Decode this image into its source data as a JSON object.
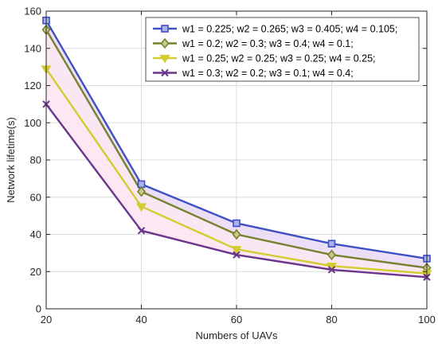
{
  "chart_data": {
    "type": "line",
    "title": "",
    "xlabel": "Numbers of UAVs",
    "ylabel": "Network  lifetime(s)",
    "x": [
      20,
      40,
      60,
      80,
      100
    ],
    "xlim": [
      20,
      100
    ],
    "ylim": [
      0,
      160
    ],
    "xticks": [
      "20",
      "40",
      "60",
      "80",
      "100"
    ],
    "yticks": [
      "0",
      "20",
      "40",
      "60",
      "80",
      "100",
      "120",
      "140",
      "160"
    ],
    "grid": true,
    "legend_position": "top-right",
    "series": [
      {
        "name": "w1 = 0.225; w2 = 0.265; w3 = 0.405; w4 = 0.105;",
        "values": [
          155,
          67,
          46,
          35,
          27
        ],
        "color": "#3f50c4",
        "marker": "square"
      },
      {
        "name": "w1 = 0.2; w2 = 0.3; w3 = 0.4; w4 = 0.1;",
        "values": [
          150,
          63,
          40,
          29,
          22
        ],
        "color": "#77822e",
        "marker": "diamond"
      },
      {
        "name": "w1 = 0.25; w2 = 0.25; w3 = 0.25; w4 = 0.25;",
        "values": [
          129,
          55,
          32,
          23,
          19
        ],
        "color": "#d2cc2e",
        "marker": "triangle-down"
      },
      {
        "name": "w1 = 0.3; w2 = 0.2; w3 = 0.1; w4 = 0.4;",
        "values": [
          110,
          42,
          29,
          21,
          17
        ],
        "color": "#6a358b",
        "marker": "x"
      }
    ]
  }
}
